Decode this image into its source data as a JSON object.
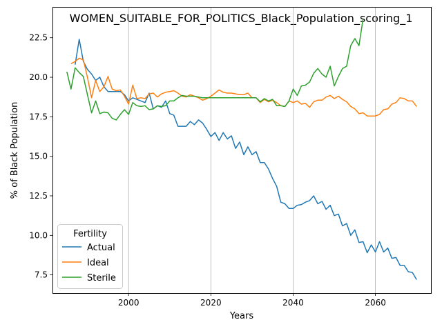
{
  "chart_data": {
    "type": "line",
    "title": "WOMEN_SUITABLE_FOR_POLITICS_Black_Population_scoring_1",
    "xlabel": "Years",
    "ylabel": "% of Black Population",
    "xlim": [
      1981.5,
      2073.5
    ],
    "ylim": [
      6.35,
      24.45
    ],
    "xticks": [
      2000,
      2020,
      2040,
      2060
    ],
    "yticks": [
      7.5,
      10.0,
      12.5,
      15.0,
      17.5,
      20.0,
      22.5
    ],
    "ytick_labels": [
      "7.5",
      "10.0",
      "12.5",
      "15.0",
      "17.5",
      "20.0",
      "22.5"
    ],
    "grid": "x-only",
    "legend": {
      "title": "Fertility",
      "placement": "lower-left"
    },
    "series": [
      {
        "name": "Actual",
        "color": "#1f77b4",
        "x": [
          1987,
          1988,
          1989,
          1990,
          1991,
          1992,
          1993,
          1994,
          1995,
          1996,
          1997,
          1998,
          1999,
          2000,
          2001,
          2002,
          2003,
          2004,
          2005,
          2006,
          2007,
          2008,
          2009,
          2010,
          2011,
          2012,
          2013,
          2014,
          2015,
          2016,
          2017,
          2018,
          2019,
          2020,
          2021,
          2022,
          2023,
          2024,
          2025,
          2026,
          2027,
          2028,
          2029,
          2030,
          2031,
          2032,
          2033,
          2034,
          2035,
          2036,
          2037,
          2038,
          2039,
          2040,
          2041,
          2042,
          2043,
          2044,
          2045,
          2046,
          2047,
          2048,
          2049,
          2050,
          2051,
          2052,
          2053,
          2054,
          2055,
          2056,
          2057,
          2058,
          2059,
          2060,
          2061,
          2062,
          2063,
          2064,
          2065,
          2066,
          2067,
          2068,
          2069,
          2070
        ],
        "values": [
          20.8,
          22.4,
          21.0,
          20.5,
          20.2,
          19.8,
          20.0,
          19.4,
          19.1,
          19.1,
          19.1,
          19.1,
          18.9,
          18.5,
          18.7,
          18.6,
          18.5,
          18.4,
          19.0,
          18.0,
          18.2,
          18.1,
          18.5,
          17.7,
          17.6,
          16.9,
          16.9,
          16.9,
          17.2,
          17.0,
          17.3,
          17.1,
          16.7,
          16.25,
          16.5,
          16.0,
          16.5,
          16.1,
          16.3,
          15.5,
          15.9,
          15.1,
          15.6,
          15.1,
          15.3,
          14.6,
          14.6,
          14.2,
          13.6,
          13.1,
          12.1,
          12.0,
          11.7,
          11.7,
          11.9,
          11.95,
          12.1,
          12.2,
          12.5,
          12.0,
          12.15,
          11.65,
          11.9,
          11.25,
          11.35,
          10.6,
          10.75,
          10.0,
          10.35,
          9.55,
          9.6,
          8.9,
          9.4,
          8.95,
          9.6,
          8.95,
          9.2,
          8.55,
          8.6,
          8.1,
          8.1,
          7.7,
          7.65,
          7.2
        ]
      },
      {
        "name": "Ideal",
        "color": "#ff7f0e",
        "x": [
          1986,
          1987,
          1988,
          1989,
          1990,
          1991,
          1992,
          1993,
          1994,
          1995,
          1996,
          1997,
          1998,
          1999,
          2000,
          2001,
          2002,
          2003,
          2004,
          2005,
          2006,
          2007,
          2008,
          2009,
          2010,
          2011,
          2012,
          2013,
          2014,
          2015,
          2016,
          2017,
          2018,
          2019,
          2020,
          2021,
          2022,
          2023,
          2024,
          2025,
          2026,
          2027,
          2028,
          2029,
          2030,
          2031,
          2032,
          2033,
          2034,
          2035,
          2036,
          2037,
          2038,
          2039,
          2040,
          2041,
          2042,
          2043,
          2044,
          2045,
          2046,
          2047,
          2048,
          2049,
          2050,
          2051,
          2052,
          2053,
          2054,
          2055,
          2056,
          2057,
          2058,
          2059,
          2060,
          2061,
          2062,
          2063,
          2064,
          2065,
          2066,
          2067,
          2068,
          2069,
          2070
        ],
        "values": [
          20.85,
          21.0,
          21.2,
          21.1,
          20.0,
          18.7,
          19.8,
          19.1,
          19.4,
          20.05,
          19.25,
          19.15,
          19.2,
          18.8,
          18.3,
          19.5,
          18.65,
          18.7,
          18.65,
          18.95,
          19.0,
          18.75,
          18.95,
          19.05,
          19.1,
          19.15,
          19.0,
          18.8,
          18.75,
          18.9,
          18.8,
          18.7,
          18.55,
          18.65,
          18.8,
          19.0,
          19.2,
          19.05,
          19.0,
          19.0,
          18.95,
          18.9,
          18.9,
          19.0,
          18.7,
          18.7,
          18.4,
          18.6,
          18.45,
          18.55,
          18.4,
          18.2,
          18.15,
          18.5,
          18.4,
          18.5,
          18.3,
          18.35,
          18.1,
          18.45,
          18.55,
          18.55,
          18.75,
          18.85,
          18.65,
          18.8,
          18.6,
          18.45,
          18.15,
          18.0,
          17.7,
          17.75,
          17.55,
          17.55,
          17.55,
          17.65,
          17.95,
          18.0,
          18.3,
          18.4,
          18.7,
          18.65,
          18.5,
          18.5,
          18.15
        ]
      },
      {
        "name": "Sterile",
        "color": "#2ca02c",
        "x": [
          1985,
          1986,
          1987,
          1988,
          1989,
          1990,
          1991,
          1992,
          1993,
          1994,
          1995,
          1996,
          1997,
          1998,
          1999,
          2000,
          2001,
          2002,
          2003,
          2004,
          2005,
          2006,
          2007,
          2008,
          2009,
          2010,
          2011,
          2012,
          2013,
          2014,
          2015,
          2016,
          2017,
          2018,
          2019,
          2020,
          2021,
          2022,
          2023,
          2024,
          2025,
          2026,
          2027,
          2028,
          2029,
          2030,
          2031,
          2032,
          2033,
          2034,
          2035,
          2036,
          2037,
          2038,
          2039,
          2040,
          2041,
          2042,
          2043,
          2044,
          2045,
          2046,
          2047,
          2048,
          2049,
          2050,
          2051,
          2052,
          2053,
          2054,
          2055,
          2056,
          2057
        ],
        "values": [
          20.35,
          19.25,
          20.6,
          20.3,
          20.05,
          18.9,
          17.75,
          18.5,
          17.7,
          17.8,
          17.75,
          17.4,
          17.3,
          17.65,
          17.95,
          17.65,
          18.4,
          18.2,
          18.15,
          18.2,
          17.95,
          18.0,
          18.2,
          18.15,
          18.2,
          18.5,
          18.5,
          18.7,
          18.85,
          18.8,
          18.8,
          18.8,
          18.75,
          18.7,
          18.7,
          18.7,
          18.7,
          18.7,
          18.7,
          18.7,
          18.7,
          18.7,
          18.7,
          18.7,
          18.7,
          18.7,
          18.7,
          18.45,
          18.65,
          18.5,
          18.6,
          18.2,
          18.2,
          18.15,
          18.5,
          19.25,
          18.85,
          19.45,
          19.5,
          19.7,
          20.25,
          20.55,
          20.2,
          20.0,
          20.7,
          19.45,
          20.05,
          20.55,
          20.7,
          22.0,
          22.45,
          22.0,
          23.7
        ]
      }
    ]
  }
}
